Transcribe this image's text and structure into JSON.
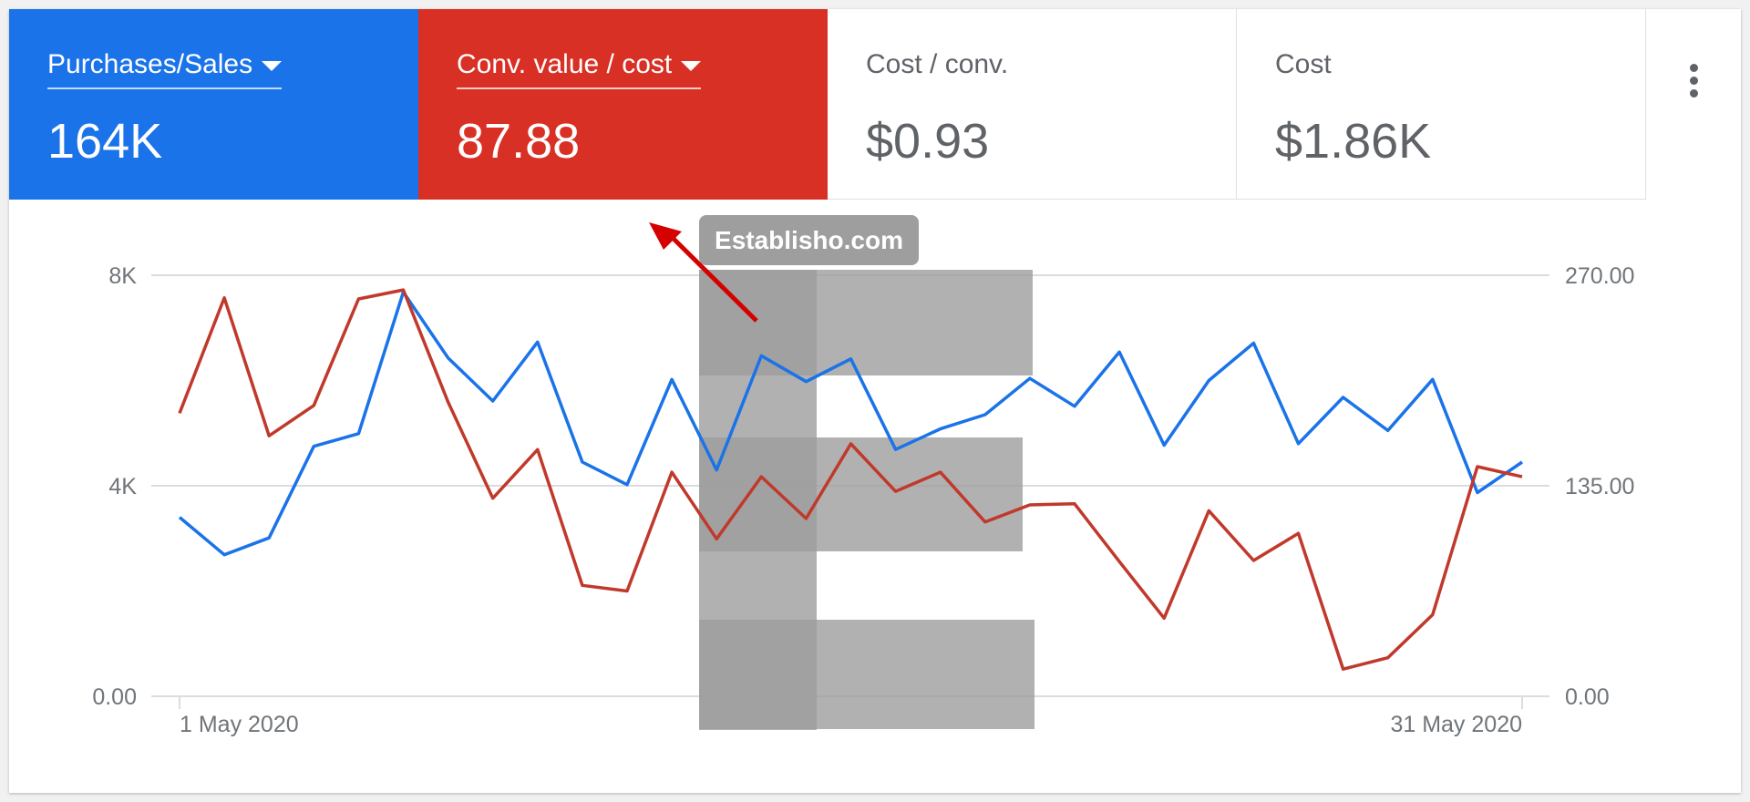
{
  "tiles": [
    {
      "title": "Purchases/Sales",
      "value": "164K",
      "color": "#1a73e8",
      "dropdown": true
    },
    {
      "title": "Conv. value / cost",
      "value": "87.88",
      "color": "#d93025",
      "dropdown": true
    },
    {
      "title": "Cost / conv.",
      "value": "$0.93",
      "dropdown": false
    },
    {
      "title": "Cost",
      "value": "$1.86K",
      "dropdown": false
    }
  ],
  "more_icon": "more-vert-icon",
  "watermark": "Establisho.com",
  "chart_data": {
    "type": "line",
    "x_start_label": "1 May 2020",
    "x_end_label": "31 May 2020",
    "x": [
      1,
      2,
      3,
      4,
      5,
      6,
      7,
      8,
      9,
      10,
      11,
      12,
      13,
      14,
      15,
      16,
      17,
      18,
      19,
      20,
      21,
      22,
      23,
      24,
      25,
      26,
      27,
      28,
      29,
      30,
      31
    ],
    "left_axis": {
      "ticks": [
        "0.00",
        "4K",
        "8K"
      ],
      "tick_values": [
        0,
        4000,
        8000
      ],
      "range": [
        0,
        8000
      ]
    },
    "right_axis": {
      "ticks": [
        "0.00",
        "135.00",
        "270.00"
      ],
      "tick_values": [
        0,
        135,
        270
      ],
      "range": [
        0,
        270
      ]
    },
    "grid": true,
    "series": [
      {
        "axis": "left",
        "color": "#1a73e8",
        "values": [
          3400,
          2690,
          3010,
          4750,
          4990,
          7680,
          6430,
          5610,
          6730,
          4450,
          4020,
          6020,
          4300,
          6470,
          5980,
          6410,
          4690,
          5080,
          5350,
          6040,
          5510,
          6540,
          4770,
          6000,
          6710,
          4800,
          5680,
          5050,
          6020,
          3870,
          4450
        ]
      },
      {
        "axis": "right",
        "color": "#c0392b",
        "values": [
          181.5,
          255.5,
          167,
          186.5,
          254.8,
          260.6,
          188.7,
          127,
          158.2,
          71.1,
          67.5,
          143.7,
          100.9,
          140.8,
          114,
          161.9,
          131.4,
          143.7,
          111.8,
          122.7,
          123.4,
          86.4,
          50.1,
          119,
          87.1,
          104.5,
          17.4,
          24.7,
          52.3,
          147.3,
          140.8
        ]
      }
    ]
  }
}
